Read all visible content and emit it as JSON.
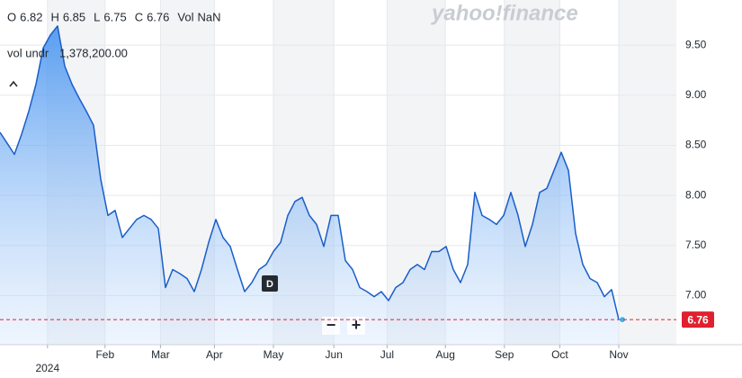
{
  "chart_data": {
    "type": "line",
    "ohlc": [
      {
        "label": "O",
        "value": 6.82
      },
      {
        "label": "H",
        "value": 6.85
      },
      {
        "label": "L",
        "value": 6.75
      },
      {
        "label": "C",
        "value": 6.76
      },
      {
        "label": "Vol",
        "value": "NaN"
      }
    ],
    "volume_label": "vol undr",
    "volume_value": "1,378,200.00",
    "brand": "yahoo!finance",
    "event_marker": "D",
    "zoom_out": "−",
    "zoom_in": "+",
    "color": "#1a5ec9",
    "last_price": 6.76,
    "last_price_color": "#e0202f",
    "values": [
      8.63,
      8.52,
      8.41,
      8.61,
      8.84,
      9.11,
      9.47,
      9.6,
      9.69,
      9.29,
      9.11,
      8.97,
      8.84,
      8.7,
      8.16,
      7.8,
      7.85,
      7.58,
      7.67,
      7.76,
      7.8,
      7.76,
      7.67,
      7.08,
      7.26,
      7.22,
      7.17,
      7.04,
      7.26,
      7.53,
      7.76,
      7.58,
      7.49,
      7.26,
      7.04,
      7.13,
      7.26,
      7.31,
      7.44,
      7.53,
      7.8,
      7.94,
      7.98,
      7.8,
      7.71,
      7.49,
      7.8,
      7.8,
      7.35,
      7.26,
      7.08,
      7.04,
      6.99,
      7.04,
      6.95,
      7.08,
      7.13,
      7.26,
      7.31,
      7.26,
      7.44,
      7.44,
      7.49,
      7.26,
      7.13,
      7.31,
      8.03,
      7.8,
      7.76,
      7.71,
      7.8,
      8.03,
      7.8,
      7.49,
      7.71,
      8.03,
      8.07,
      8.25,
      8.43,
      8.25,
      7.62,
      7.31,
      7.17,
      7.13,
      6.99,
      7.06,
      6.76
    ],
    "xlim": [
      0,
      94
    ],
    "xticks": [
      {
        "value": 6.6,
        "label": "2024"
      },
      {
        "value": 14.6,
        "label": "Feb"
      },
      {
        "value": 22.3,
        "label": "Mar"
      },
      {
        "value": 29.8,
        "label": "Apr"
      },
      {
        "value": 38,
        "label": "May"
      },
      {
        "value": 46.4,
        "label": "Jun"
      },
      {
        "value": 53.8,
        "label": "Jul"
      },
      {
        "value": 61.9,
        "label": "Aug"
      },
      {
        "value": 70.1,
        "label": "Sep"
      },
      {
        "value": 77.8,
        "label": "Oct"
      },
      {
        "value": 86,
        "label": "Nov"
      }
    ],
    "ylim": [
      6.51,
      9.95
    ],
    "yticks": [
      {
        "value": 7,
        "label": "7.00"
      },
      {
        "value": 7.5,
        "label": "7.50"
      },
      {
        "value": 8,
        "label": "8.00"
      },
      {
        "value": 8.5,
        "label": "8.50"
      },
      {
        "value": 9,
        "label": "9.00"
      },
      {
        "value": 9.5,
        "label": "9.50"
      }
    ],
    "grid": true
  }
}
